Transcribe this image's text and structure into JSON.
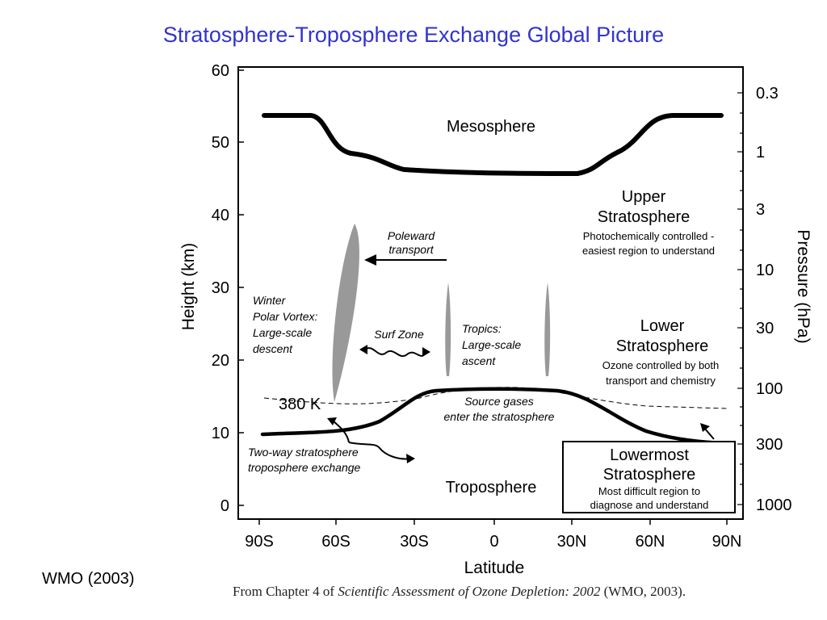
{
  "slide": {
    "title": "Stratosphere-Troposphere Exchange Global Picture",
    "source_label": "WMO (2003)",
    "caption_prefix": "From Chapter 4 of ",
    "caption_italic": "Scientific Assessment of Ozone Depletion: 2002",
    "caption_suffix": " (WMO, 2003)."
  },
  "axes": {
    "y_left_label": "Height (km)",
    "y_left_ticks": [
      "60",
      "50",
      "40",
      "30",
      "20",
      "10",
      "0"
    ],
    "y_right_label": "Pressure (hPa)",
    "y_right_ticks": [
      "0.3",
      "1",
      "3",
      "10",
      "30",
      "100",
      "300",
      "1000"
    ],
    "x_label": "Latitude",
    "x_ticks": [
      "90S",
      "60S",
      "30S",
      "0",
      "30N",
      "60N",
      "90N"
    ]
  },
  "regions": {
    "mesosphere": "Mesosphere",
    "upper_strat_line1": "Upper",
    "upper_strat_line2": "Stratosphere",
    "upper_strat_note1": "Photochemically controlled -",
    "upper_strat_note2": "easiest region to understand",
    "lower_strat_line1": "Lower",
    "lower_strat_line2": "Stratosphere",
    "lower_strat_note1": "Ozone controlled by both",
    "lower_strat_note2": "transport and chemistry",
    "lowermost_line1": "Lowermost",
    "lowermost_line2": "Stratosphere",
    "lowermost_note1": "Most difficult region to",
    "lowermost_note2": "diagnose and understand",
    "troposphere": "Troposphere"
  },
  "annotations": {
    "poleward_1": "Poleward",
    "poleward_2": "transport",
    "winter_1": "Winter",
    "winter_2": "Polar Vortex:",
    "winter_3": "Large-scale",
    "winter_4": "descent",
    "surf_zone": "Surf Zone",
    "tropics_1": "Tropics:",
    "tropics_2": "Large-scale",
    "tropics_3": "ascent",
    "isentrope": "380 K",
    "source_1": "Source gases",
    "source_2": "enter the stratosphere",
    "twoway_1": "Two-way stratosphere",
    "twoway_2": "troposphere exchange"
  }
}
